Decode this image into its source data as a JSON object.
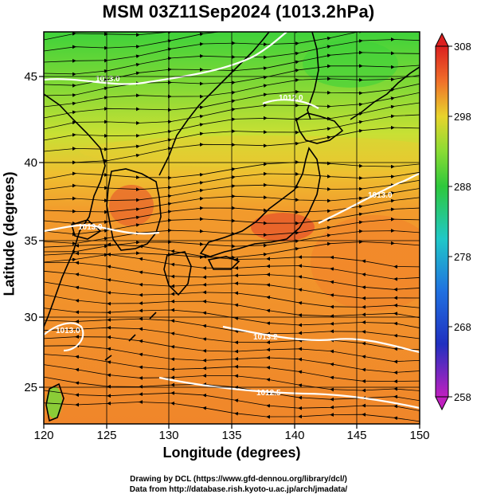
{
  "title": "MSM 03Z11Sep2024 (1013.2hPa)",
  "xlabel": "Longitude (degrees)",
  "ylabel": "Latitude  (degrees)",
  "x_ticks": [
    "120",
    "125",
    "130",
    "135",
    "140",
    "145",
    "150"
  ],
  "y_ticks": [
    "25",
    "30",
    "35",
    "40",
    "45"
  ],
  "colorbar_ticks": [
    "308",
    "298",
    "288",
    "278",
    "268",
    "258"
  ],
  "contour_labels": [
    "1013.0",
    "1013.0",
    "1013.0",
    "1012.0",
    "1013.0",
    "1013.2",
    "1012.5"
  ],
  "credit_line1": "Drawing by DCL (https://www.gfd-dennou.org/library/dcl/)",
  "credit_line2": "Data from http://database.rish.kyoto-u.ac.jp/arch/jmadata/",
  "map": {
    "lon_range": [
      120,
      150
    ],
    "lat_range": [
      22.5,
      47.6
    ],
    "field": "temperature (K) with streamlines and isobars",
    "colorbar_range": [
      258,
      308
    ],
    "colors": {
      "warm": "#f08a2a",
      "hot": "#e5452a",
      "mild": "#f0b830",
      "yellow": "#e8dc2a",
      "green_yellow": "#b4e034",
      "green": "#4cd23c",
      "isobar": "#ffffff",
      "coast": "#000000",
      "streamline": "#000000"
    }
  }
}
